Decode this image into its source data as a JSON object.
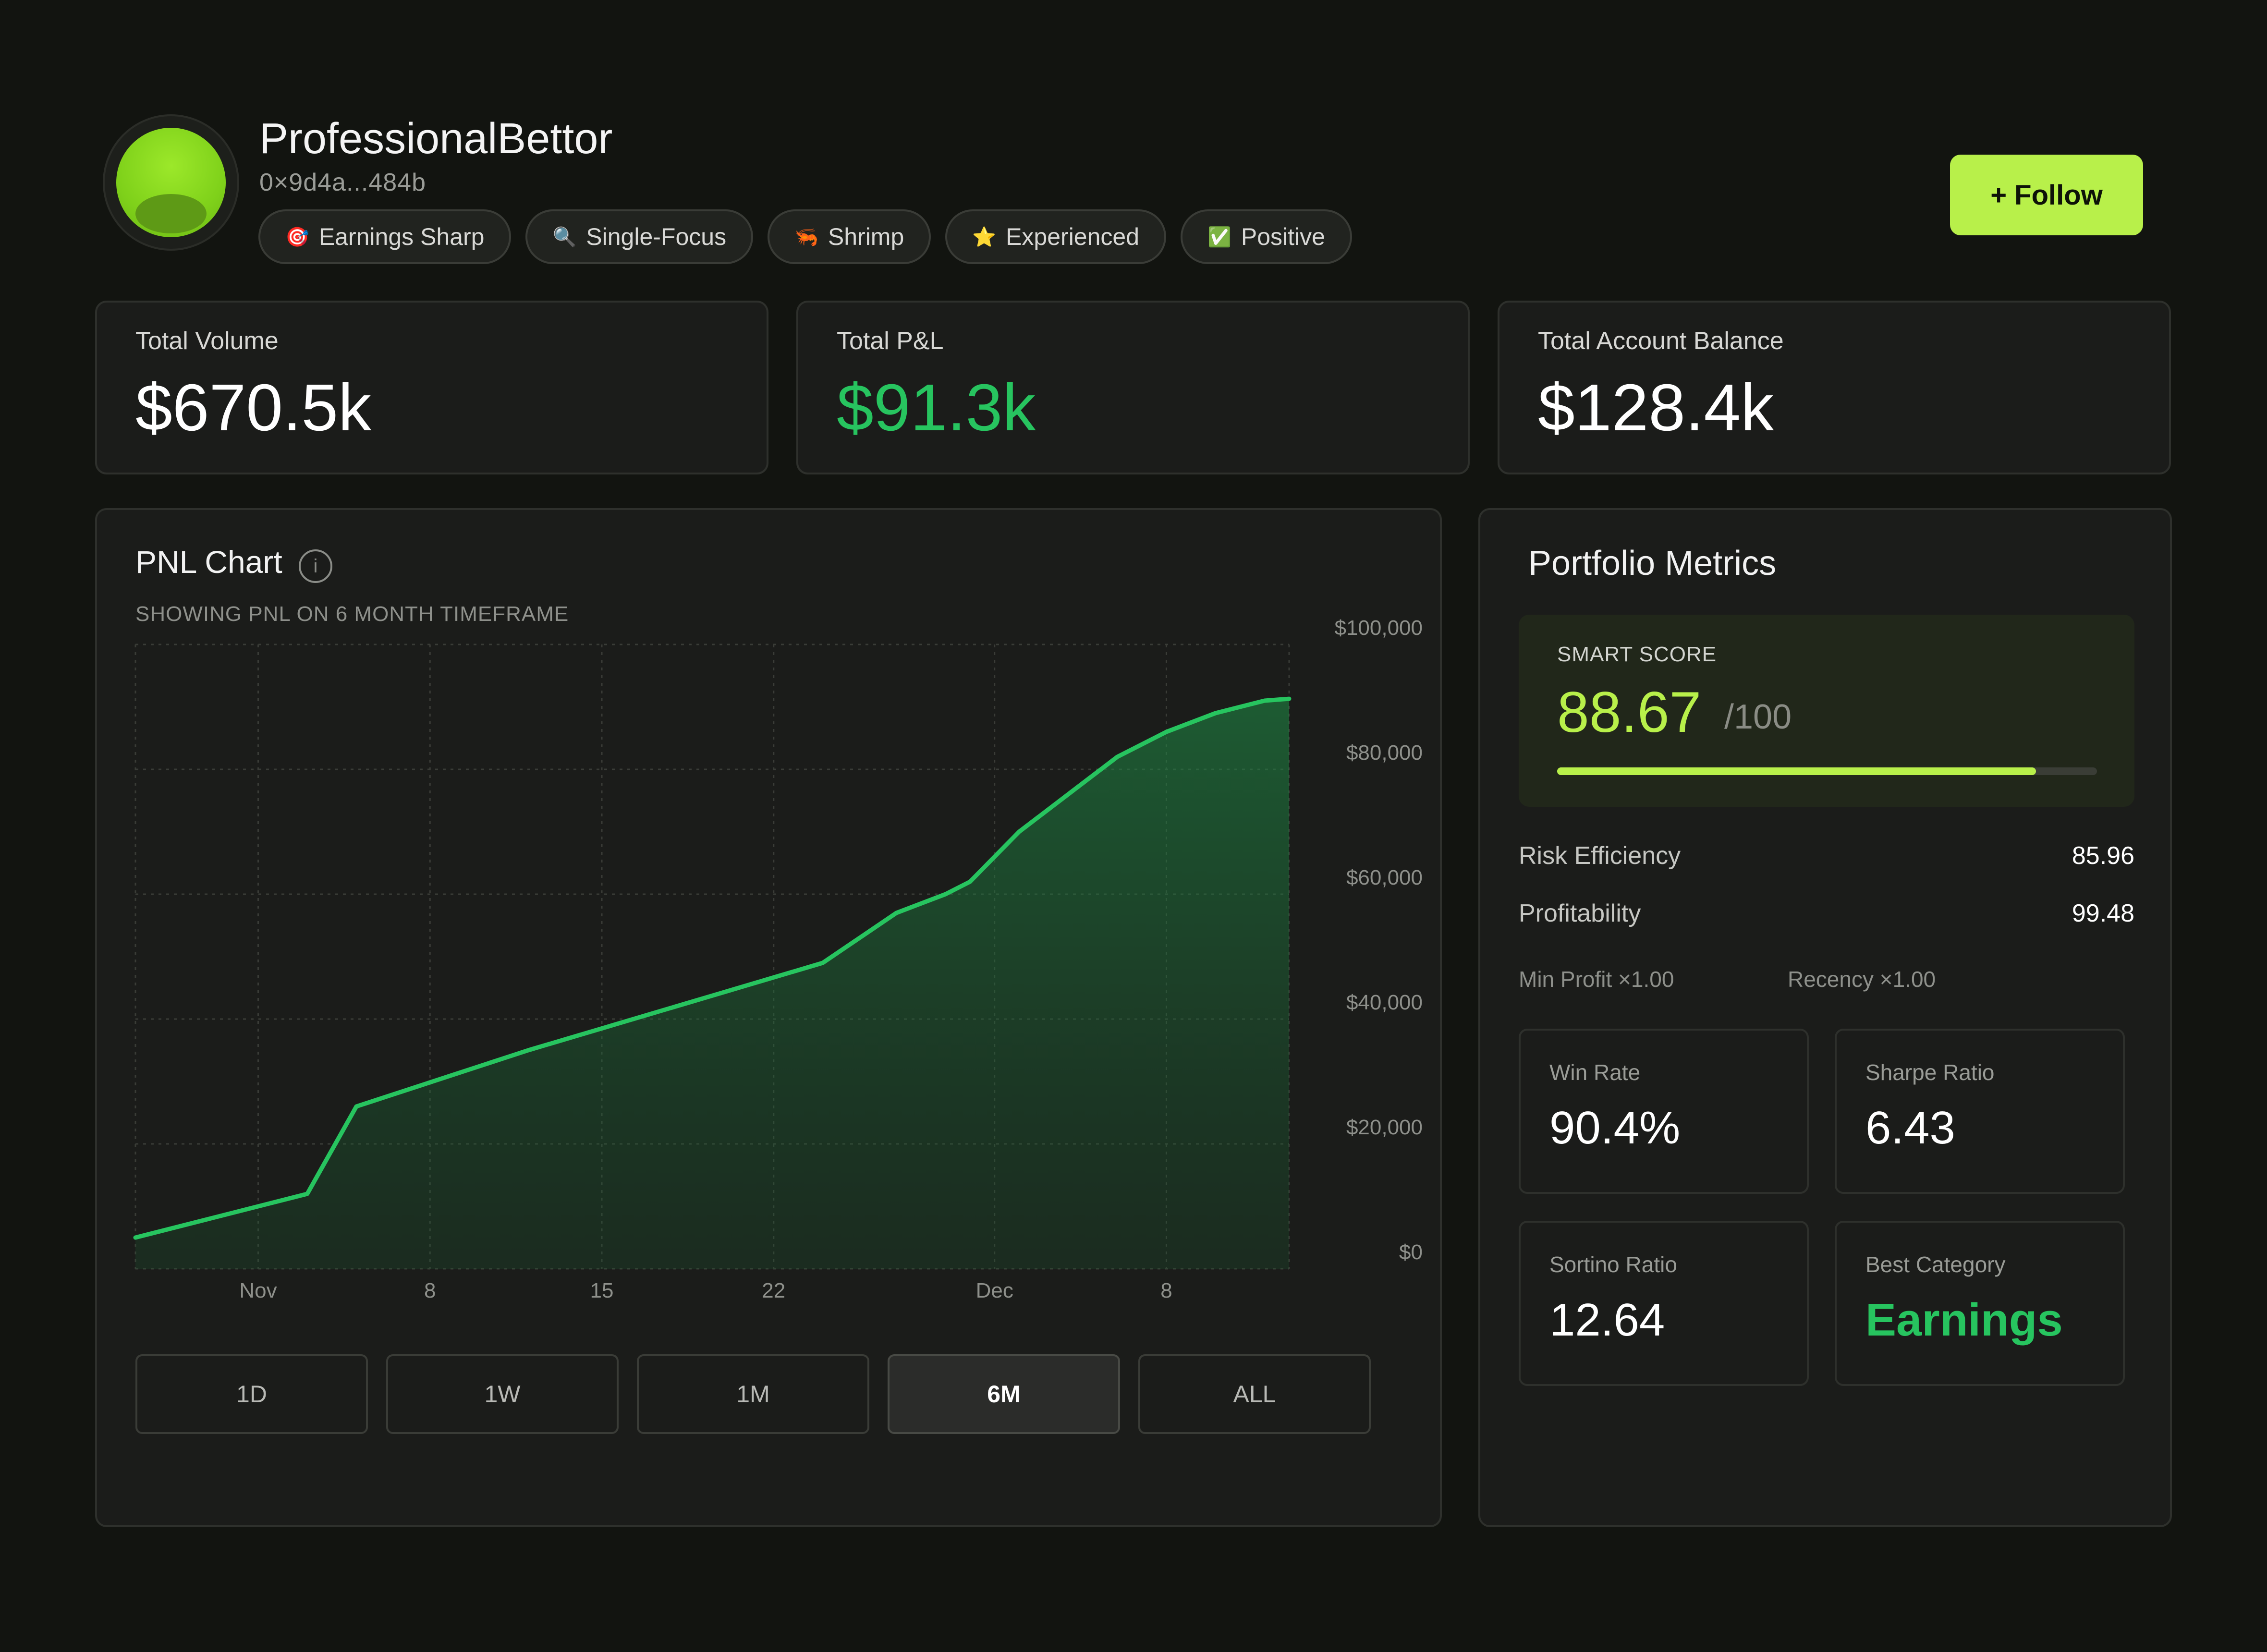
{
  "profile": {
    "username": "ProfessionalBettor",
    "wallet": "0×9d4a...484b",
    "badges": [
      {
        "icon": "🎯",
        "label": "Earnings Sharp"
      },
      {
        "icon": "🔍",
        "label": "Single-Focus"
      },
      {
        "icon": "🦐",
        "label": "Shrimp"
      },
      {
        "icon": "⭐",
        "label": "Experienced"
      },
      {
        "icon": "✅",
        "label": "Positive"
      }
    ],
    "follow_label": "+ Follow"
  },
  "stats": [
    {
      "label": "Total Volume",
      "value": "$670.5k"
    },
    {
      "label": "Total P&L",
      "value": "$91.3k",
      "color": "#27c45f"
    },
    {
      "label": "Total Account Balance",
      "value": "$128.4k"
    }
  ],
  "pnl": {
    "title": "PNL Chart",
    "subtitle": "SHOWING PNL ON 6 MONTH TIMEFRAME",
    "info_icon": "info-icon",
    "timeframes": [
      "1D",
      "1W",
      "1M",
      "6M",
      "ALL"
    ],
    "active_timeframe": "6M"
  },
  "chart_data": {
    "type": "area",
    "title": "PNL Chart",
    "xlabel": "",
    "ylabel": "",
    "ylim": [
      0,
      100000
    ],
    "y_ticks": [
      "$100,000",
      "$80,000",
      "$60,000",
      "$40,000",
      "$20,000",
      "$0"
    ],
    "y_tick_values": [
      100000,
      80000,
      60000,
      40000,
      20000,
      0
    ],
    "x_ticks": [
      "Nov",
      "8",
      "15",
      "22",
      "Dec",
      "8"
    ],
    "x_tick_values": [
      "2024-11-01",
      "2024-11-08",
      "2024-11-15",
      "2024-11-22",
      "2024-12-01",
      "2024-12-08"
    ],
    "grid": true,
    "color": "#27c45f",
    "series": [
      {
        "x": [
          "2024-10-27",
          "2024-11-03",
          "2024-11-05",
          "2024-11-12",
          "2024-11-18",
          "2024-11-24",
          "2024-11-27",
          "2024-11-29",
          "2024-11-30",
          "2024-12-02",
          "2024-12-04",
          "2024-12-06",
          "2024-12-07",
          "2024-12-08",
          "2024-12-10",
          "2024-12-12",
          "2024-12-13"
        ],
        "y": [
          5000,
          12000,
          26000,
          35000,
          42000,
          49000,
          57000,
          60000,
          62000,
          70000,
          76000,
          82000,
          84000,
          86000,
          89000,
          91000,
          91300
        ]
      }
    ]
  },
  "portfolio": {
    "title": "Portfolio Metrics",
    "smart_score": {
      "label": "SMART SCORE",
      "value": "88.67",
      "max": "/100",
      "fraction": 0.8867
    },
    "rows": [
      {
        "label": "Risk Efficiency",
        "value": "85.96"
      },
      {
        "label": "Profitability",
        "value": "99.48"
      }
    ],
    "multipliers": [
      "Min Profit ×1.00",
      "Recency ×1.00"
    ],
    "cards": [
      {
        "label": "Win Rate",
        "value": "90.4%"
      },
      {
        "label": "Sharpe Ratio",
        "value": "6.43"
      },
      {
        "label": "Sortino Ratio",
        "value": "12.64"
      },
      {
        "label": "Best Category",
        "value": "Earnings",
        "color": "#27c45f"
      }
    ]
  }
}
